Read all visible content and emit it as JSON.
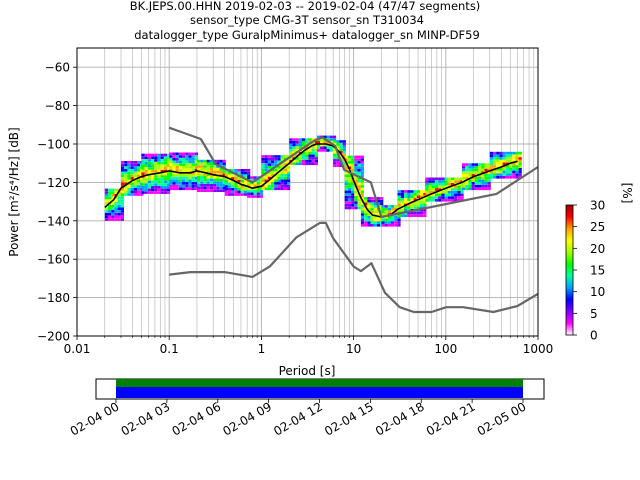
{
  "chart_data": [
    {
      "type": "heatmap",
      "title_lines": [
        "BK.JEPS.00.HHN   2019-02-03 -- 2019-02-04  (47/47 segments)",
        "sensor_type CMG-3T sensor_sn T310034",
        "datalogger_type GuralpMinimus+ datalogger_sn MINP-DF59"
      ],
      "xlabel": "Period [s]",
      "ylabel": "Power [m²/s⁴/Hz] [dB]",
      "xscale": "log",
      "xlim": [
        0.01,
        1000
      ],
      "ylim": [
        -200,
        -50
      ],
      "xticks": [
        {
          "value": 0.01,
          "label": "0.01"
        },
        {
          "value": 0.1,
          "label": "0.1"
        },
        {
          "value": 1,
          "label": "1"
        },
        {
          "value": 10,
          "label": "10"
        },
        {
          "value": 100,
          "label": "100"
        },
        {
          "value": 1000,
          "label": "1000"
        }
      ],
      "yticks": [
        -60,
        -80,
        -100,
        -120,
        -140,
        -160,
        -180,
        -200
      ],
      "grid": true,
      "series": [
        {
          "kind": "mode",
          "color": "#000000",
          "points": [
            [
              0.02,
              -133
            ],
            [
              0.025,
              -129
            ],
            [
              0.03,
              -123
            ],
            [
              0.04,
              -119
            ],
            [
              0.05,
              -117
            ],
            [
              0.06,
              -116
            ],
            [
              0.08,
              -115
            ],
            [
              0.1,
              -114
            ],
            [
              0.13,
              -115
            ],
            [
              0.17,
              -115
            ],
            [
              0.2,
              -114
            ],
            [
              0.25,
              -115
            ],
            [
              0.3,
              -116
            ],
            [
              0.4,
              -117
            ],
            [
              0.5,
              -119
            ],
            [
              0.6,
              -121
            ],
            [
              0.7,
              -122
            ],
            [
              0.8,
              -123
            ],
            [
              1,
              -122
            ],
            [
              1.2,
              -119
            ],
            [
              1.5,
              -115
            ],
            [
              2,
              -110
            ],
            [
              2.5,
              -106
            ],
            [
              3,
              -103
            ],
            [
              3.5,
              -101
            ],
            [
              4,
              -100
            ],
            [
              5,
              -100
            ],
            [
              6,
              -101
            ],
            [
              7,
              -104
            ],
            [
              8,
              -108
            ],
            [
              9,
              -113
            ],
            [
              10,
              -119
            ],
            [
              12,
              -128
            ],
            [
              14,
              -134
            ],
            [
              16,
              -137
            ],
            [
              20,
              -138
            ],
            [
              25,
              -137
            ],
            [
              30,
              -134
            ],
            [
              40,
              -131
            ],
            [
              50,
              -129
            ],
            [
              70,
              -126
            ],
            [
              100,
              -123
            ],
            [
              150,
              -120
            ],
            [
              200,
              -117
            ],
            [
              300,
              -114
            ],
            [
              400,
              -112
            ],
            [
              500,
              -110
            ],
            [
              600,
              -109
            ]
          ]
        },
        {
          "kind": "nhnm",
          "color": "#666666",
          "points": [
            [
              0.1,
              -91.5
            ],
            [
              0.22,
              -97.4
            ],
            [
              0.32,
              -110.5
            ],
            [
              0.8,
              -120
            ],
            [
              3.8,
              -98
            ],
            [
              4.6,
              -96.5
            ],
            [
              6.3,
              -101
            ],
            [
              7.9,
              -113.5
            ],
            [
              15.4,
              -120
            ],
            [
              20,
              -138
            ],
            [
              354.8,
              -126
            ],
            [
              1000,
              -112
            ]
          ]
        },
        {
          "kind": "nlnm",
          "color": "#666666",
          "points": [
            [
              0.1,
              -168
            ],
            [
              0.17,
              -166.7
            ],
            [
              0.4,
              -166.7
            ],
            [
              0.8,
              -169.2
            ],
            [
              1.24,
              -163.7
            ],
            [
              2.4,
              -148.6
            ],
            [
              4.3,
              -141.1
            ],
            [
              5,
              -141.1
            ],
            [
              6,
              -149
            ],
            [
              10,
              -163.8
            ],
            [
              12,
              -166.2
            ],
            [
              15.6,
              -162.1
            ],
            [
              21.9,
              -177.5
            ],
            [
              31.6,
              -185
            ],
            [
              45,
              -187.5
            ],
            [
              70,
              -187.5
            ],
            [
              101,
              -185
            ],
            [
              154,
              -185
            ],
            [
              328,
              -187.5
            ],
            [
              600,
              -184.4
            ],
            [
              1000,
              -178
            ]
          ]
        }
      ],
      "heatmap": {
        "bands": [
          {
            "x0": 0.02,
            "x1": 0.03,
            "lo": -140,
            "hi": -124
          },
          {
            "x0": 0.03,
            "x1": 0.05,
            "lo": -127,
            "hi": -109
          },
          {
            "x0": 0.05,
            "x1": 0.1,
            "lo": -126,
            "hi": -106
          },
          {
            "x0": 0.1,
            "x1": 0.2,
            "lo": -124,
            "hi": -105
          },
          {
            "x0": 0.2,
            "x1": 0.4,
            "lo": -125,
            "hi": -109
          },
          {
            "x0": 0.4,
            "x1": 0.7,
            "lo": -127,
            "hi": -114
          },
          {
            "x0": 0.7,
            "x1": 1,
            "lo": -128,
            "hi": -117
          },
          {
            "x0": 1,
            "x1": 2,
            "lo": -124,
            "hi": -107
          },
          {
            "x0": 2,
            "x1": 4,
            "lo": -111,
            "hi": -97
          },
          {
            "x0": 4,
            "x1": 6,
            "lo": -104,
            "hi": -96
          },
          {
            "x0": 6,
            "x1": 8,
            "lo": -112,
            "hi": -99
          },
          {
            "x0": 8,
            "x1": 12,
            "lo": -134,
            "hi": -106
          },
          {
            "x0": 12,
            "x1": 20,
            "lo": -143,
            "hi": -128
          },
          {
            "x0": 20,
            "x1": 30,
            "lo": -143,
            "hi": -132
          },
          {
            "x0": 30,
            "x1": 60,
            "lo": -138,
            "hi": -124
          },
          {
            "x0": 60,
            "x1": 150,
            "lo": -130,
            "hi": -118
          },
          {
            "x0": 150,
            "x1": 300,
            "lo": -124,
            "hi": -110
          },
          {
            "x0": 300,
            "x1": 650,
            "lo": -118,
            "hi": -104
          }
        ]
      },
      "colorbar": {
        "label": "[%]",
        "range": [
          0,
          30
        ],
        "ticks": [
          0,
          5,
          10,
          15,
          20,
          25,
          30
        ],
        "colors": [
          "#ffffff",
          "#ff00ff",
          "#7f00ff",
          "#0000ff",
          "#00a0ff",
          "#00ffa0",
          "#00ff00",
          "#a0ff00",
          "#ffff00",
          "#ffa000",
          "#ff0000",
          "#a00000"
        ]
      }
    },
    {
      "type": "timeline",
      "ticks": [
        "02-04 00",
        "02-04 03",
        "02-04 06",
        "02-04 09",
        "02-04 12",
        "02-04 15",
        "02-04 18",
        "02-04 21",
        "02-05 00"
      ],
      "range": [
        "02-03 21.7",
        "02-05 01.5"
      ],
      "coverage": {
        "start_hours": 0,
        "end_hours": 24
      },
      "colors": {
        "top": "#008000",
        "bottom": "#0000ff"
      }
    }
  ]
}
